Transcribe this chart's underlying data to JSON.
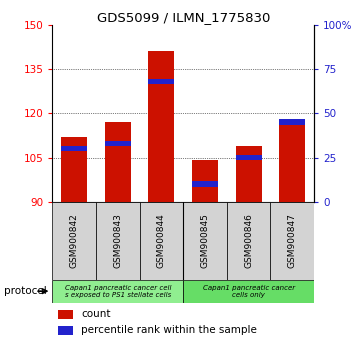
{
  "title": "GDS5099 / ILMN_1775830",
  "samples": [
    "GSM900842",
    "GSM900843",
    "GSM900844",
    "GSM900845",
    "GSM900846",
    "GSM900847"
  ],
  "counts": [
    112,
    117,
    141,
    104,
    109,
    118
  ],
  "percentile_ranks": [
    30,
    33,
    68,
    10,
    25,
    45
  ],
  "ylim_left": [
    90,
    150
  ],
  "ylim_right": [
    0,
    100
  ],
  "yticks_left": [
    90,
    105,
    120,
    135,
    150
  ],
  "yticks_right": [
    0,
    25,
    50,
    75,
    100
  ],
  "ytick_labels_right": [
    "0",
    "25",
    "50",
    "75",
    "100%"
  ],
  "bar_color": "#cc1100",
  "percentile_color": "#2222cc",
  "bar_width": 0.6,
  "protocol_groups": [
    {
      "label": "Capan1 pancreatic cancer cell\ns exposed to PS1 stellate cells",
      "start": 0,
      "end": 2,
      "color": "#90ee90"
    },
    {
      "label": "Capan1 pancreatic cancer\ncells only",
      "start": 3,
      "end": 5,
      "color": "#66dd66"
    }
  ],
  "protocol_label": "protocol",
  "legend_count_label": "count",
  "legend_percentile_label": "percentile rank within the sample",
  "background_color": "#ffffff"
}
